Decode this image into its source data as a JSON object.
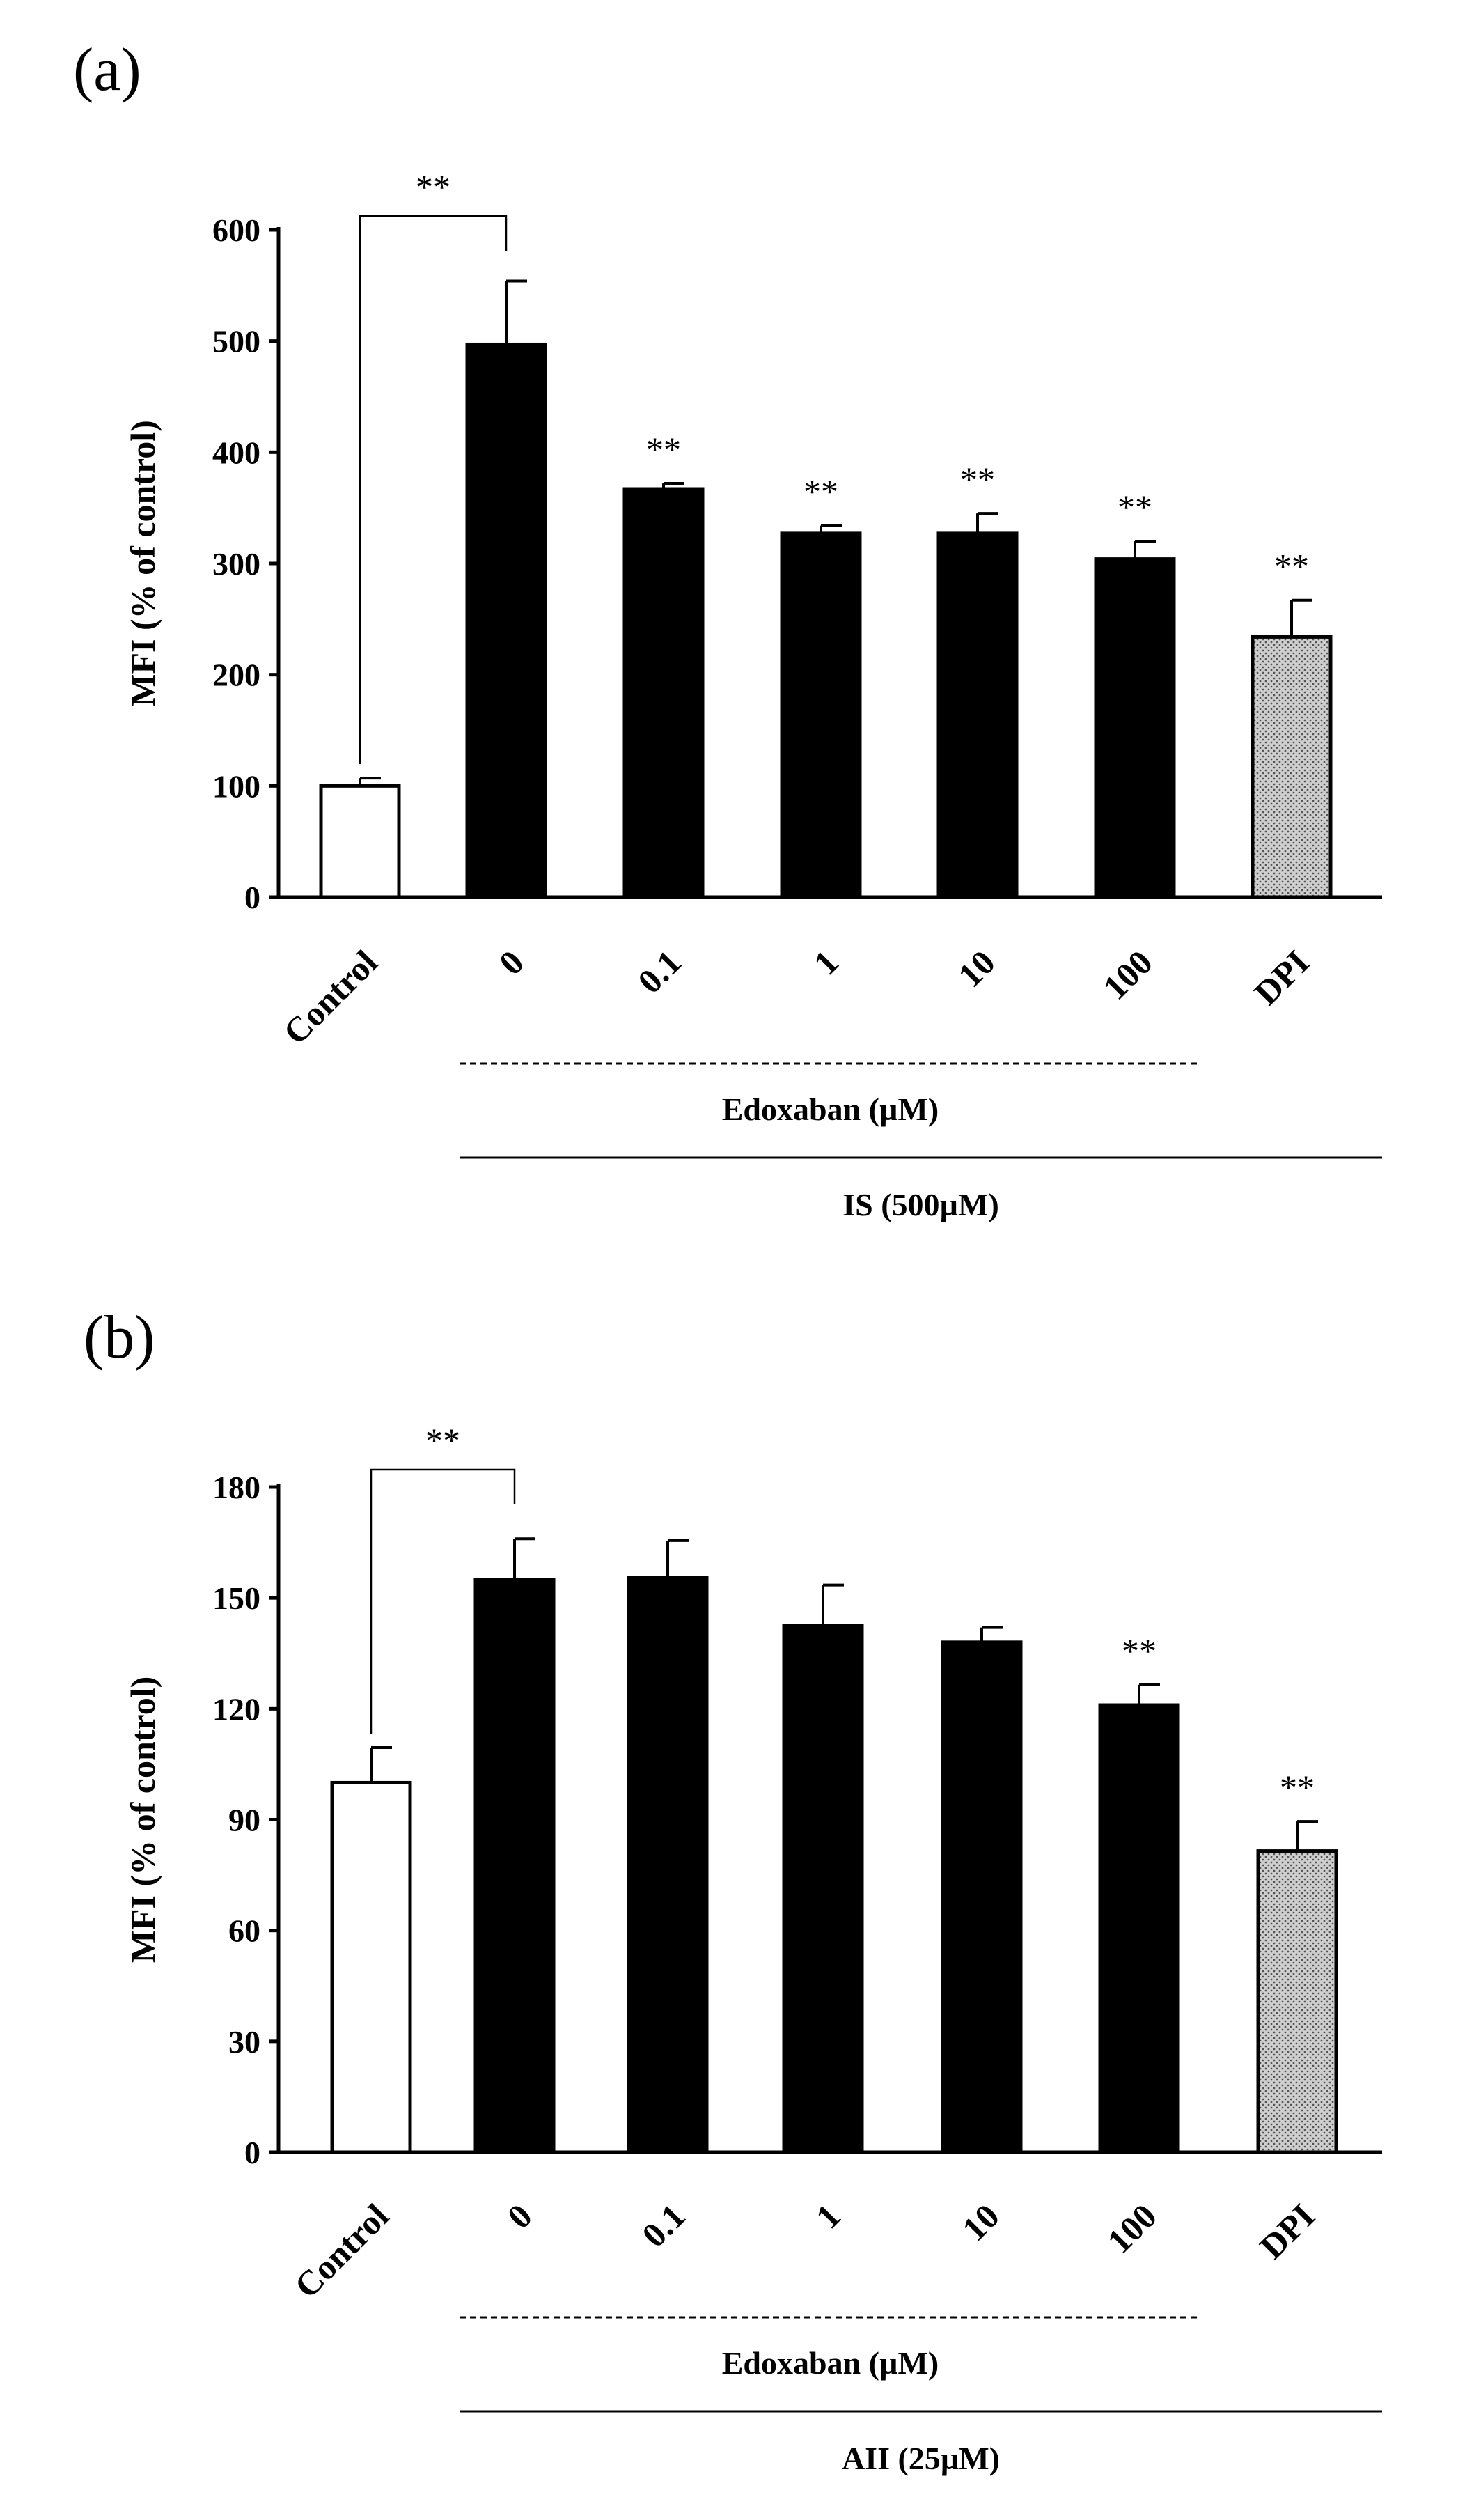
{
  "chart_data": [
    {
      "panel_label": "(a)",
      "type": "bar",
      "categories": [
        "Control",
        "0",
        "0.1",
        "1",
        "10",
        "100",
        "DPI"
      ],
      "values": [
        100,
        497,
        367,
        327,
        327,
        304,
        234
      ],
      "errors": [
        7,
        57,
        5,
        7,
        18,
        16,
        33
      ],
      "bar_styles": [
        "white",
        "black",
        "black",
        "black",
        "black",
        "black",
        "dotted"
      ],
      "significance": [
        "",
        "",
        "**",
        "**",
        "**",
        "**",
        "**"
      ],
      "bracket": {
        "from": 0,
        "to": 1,
        "label": "**"
      },
      "ylabel": "MFI (% of control)",
      "yticks": [
        0,
        100,
        200,
        300,
        400,
        500,
        600
      ],
      "ylim": [
        0,
        600
      ],
      "group_label": "Edoxaban (µM)",
      "treatment_label": "IS (500µM)"
    },
    {
      "panel_label": "(b)",
      "type": "bar",
      "categories": [
        "Control",
        "0",
        "0.1",
        "1",
        "10",
        "100",
        "DPI"
      ],
      "values": [
        100,
        155,
        155.5,
        142.5,
        138,
        121,
        81.5
      ],
      "errors": [
        9.5,
        11,
        10,
        11,
        4,
        5.5,
        8
      ],
      "bar_styles": [
        "white",
        "black",
        "black",
        "black",
        "black",
        "black",
        "dotted"
      ],
      "significance": [
        "",
        "",
        "",
        "",
        "",
        "**",
        "**"
      ],
      "bracket": {
        "from": 0,
        "to": 1,
        "label": "**"
      },
      "ylabel": "MFI (% of control)",
      "yticks": [
        0,
        30,
        60,
        90,
        120,
        150,
        180
      ],
      "ylim": [
        0,
        180
      ],
      "group_label": "Edoxaban (µM)",
      "treatment_label": "AII (25µM)"
    }
  ]
}
